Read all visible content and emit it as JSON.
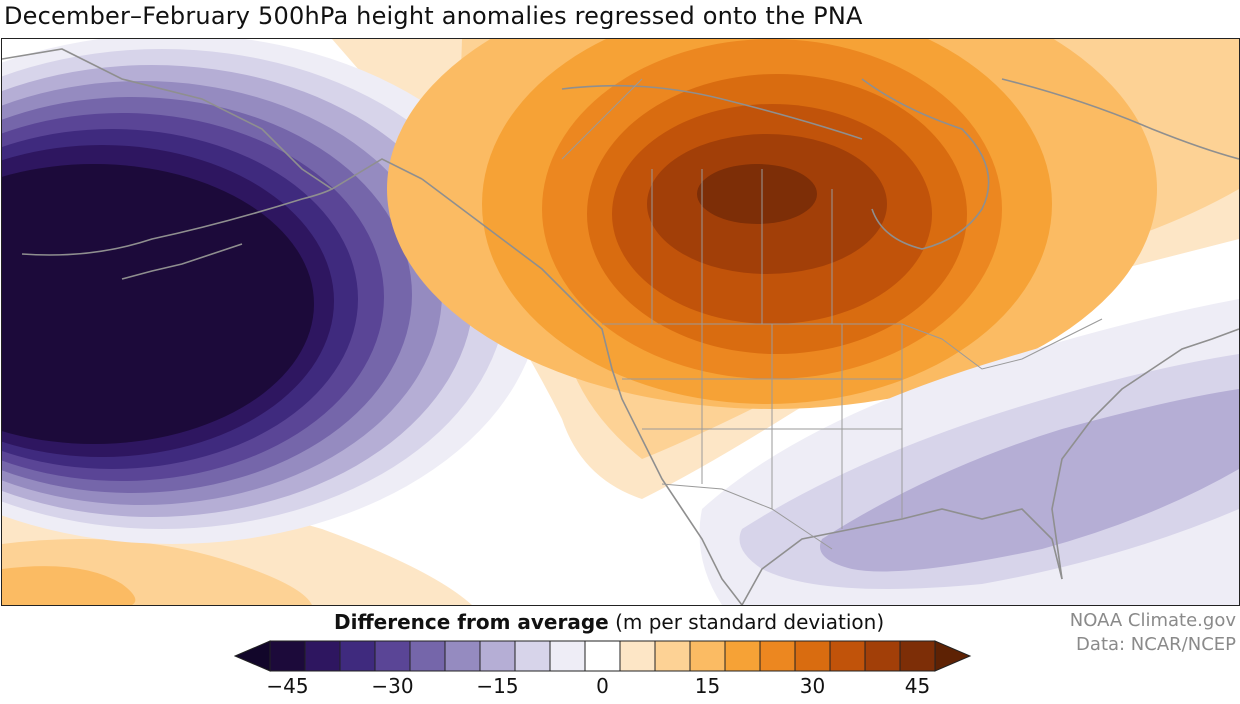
{
  "title": "December–February 500hPa height anomalies regressed onto the PNA",
  "legend": {
    "label_bold": "Difference from average",
    "label_units": " (m per standard deviation)",
    "ticks": [
      "−45",
      "−30",
      "−15",
      "0",
      "15",
      "30",
      "45"
    ],
    "bins": [
      {
        "color": "#1c0a3a"
      },
      {
        "color": "#2e1660"
      },
      {
        "color": "#3f2a7e"
      },
      {
        "color": "#5a4596"
      },
      {
        "color": "#7566aa"
      },
      {
        "color": "#958bc0"
      },
      {
        "color": "#b5aed5"
      },
      {
        "color": "#d7d4ea"
      },
      {
        "color": "#eeedf6"
      },
      {
        "color": "#ffffff"
      },
      {
        "color": "#fde6c6"
      },
      {
        "color": "#fdd295"
      },
      {
        "color": "#fbbb63"
      },
      {
        "color": "#f6a236"
      },
      {
        "color": "#ec8720"
      },
      {
        "color": "#d96c10"
      },
      {
        "color": "#c1530a"
      },
      {
        "color": "#a23f08"
      },
      {
        "color": "#7d2e07"
      }
    ],
    "low_arrow_color": "#12062a",
    "high_arrow_color": "#5e2204"
  },
  "credit": {
    "line1": "NOAA Climate.gov",
    "line2": "Data: NCAR/NCEP"
  },
  "map": {
    "negative_center": "North Pacific",
    "positive_center": "Western Canada",
    "secondary_negative": "Southeastern United States"
  }
}
